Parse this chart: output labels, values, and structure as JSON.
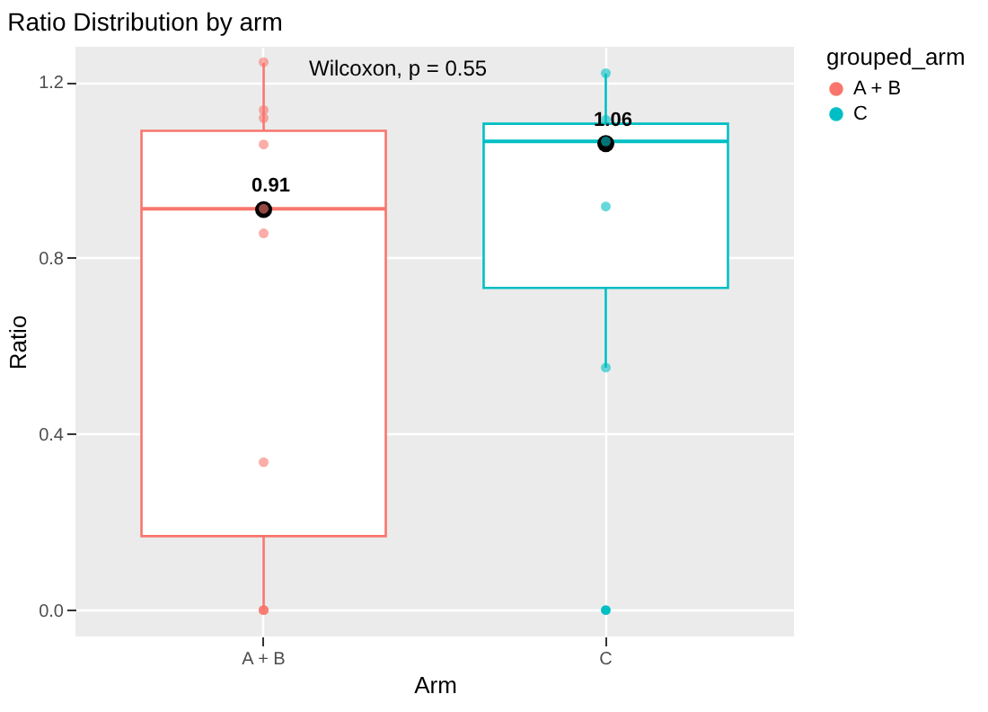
{
  "chart_data": {
    "type": "box",
    "title": "Ratio Distribution by arm",
    "xlabel": "Arm",
    "ylabel": "Ratio",
    "legend_title": "grouped_arm",
    "categories": [
      "A + B",
      "C"
    ],
    "ylim": [
      -0.06,
      1.28
    ],
    "yticks": [
      {
        "value": 0,
        "label": "0.0"
      },
      0.4,
      0.8,
      1.2
    ],
    "grid": true,
    "legend": "right",
    "annotations": [
      "Wilcoxon, p = 0.55"
    ],
    "series": [
      {
        "color": "#f8766d",
        "boxes": [
          {
            "low": 0,
            "q1": 0.168,
            "median": 0.912,
            "q3": 1.089,
            "high": 1.243
          },
          null
        ]
      },
      {
        "color": "#00bfc4",
        "boxes": [
          null,
          {
            "low": 0.551,
            "q1": 0.732,
            "median": 1.065,
            "q3": 1.105,
            "high": 1.219,
            "outliers": [
              0
            ]
          }
        ]
      },
      {
        "type": "scatter",
        "name": "A + B",
        "color": "#f8766d",
        "x": [
          "A + B",
          "A + B",
          "A + B",
          "A + B",
          "A + B",
          "A + B",
          "A + B",
          "A + B",
          "A + B",
          "A + B"
        ],
        "values": [
          1.245,
          1.136,
          1.118,
          1.058,
          0.912,
          0.856,
          0.336,
          0,
          0,
          0
        ]
      },
      {
        "type": "scatter",
        "name": "C",
        "color": "#00bfc4",
        "x": [
          "C",
          "C",
          "C",
          "C",
          "C"
        ],
        "values": [
          1.22,
          1.114,
          1.065,
          0.917,
          0.551
        ]
      },
      {
        "type": "scatter",
        "color": "#000000",
        "x": [
          "A + B",
          "C"
        ],
        "values": [
          0.91,
          1.06
        ],
        "value_labels": [
          "0.91",
          "1.06"
        ]
      }
    ]
  }
}
